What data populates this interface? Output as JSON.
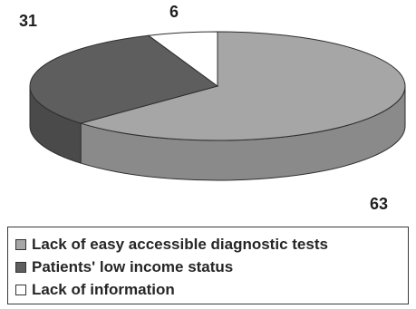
{
  "chart_data": {
    "type": "pie",
    "style": "3d",
    "legend_position": "bottom",
    "slices": [
      {
        "label": "Lack of easy accessible diagnostic tests",
        "value": 63,
        "color": "#a6a6a6",
        "side_color": "#8a8a8a"
      },
      {
        "label": "Patients' low income status",
        "value": 31,
        "color": "#5e5e5e",
        "side_color": "#4a4a4a"
      },
      {
        "label": "Lack of information",
        "value": 6,
        "color": "#ffffff",
        "side_color": "#e6e6e6"
      }
    ]
  }
}
